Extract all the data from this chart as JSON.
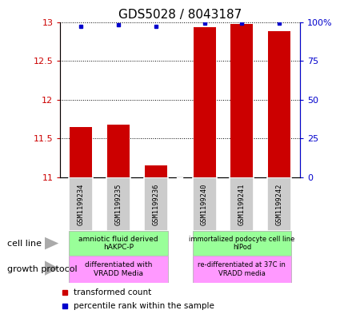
{
  "title": "GDS5028 / 8043187",
  "samples": [
    "GSM1199234",
    "GSM1199235",
    "GSM1199236",
    "GSM1199240",
    "GSM1199241",
    "GSM1199242"
  ],
  "bar_values": [
    11.65,
    11.68,
    11.15,
    12.93,
    12.97,
    12.88
  ],
  "percentile_values": [
    97,
    98,
    97,
    99,
    99,
    99
  ],
  "bar_color": "#cc0000",
  "dot_color": "#0000cc",
  "ylim_left": [
    11,
    13
  ],
  "ylim_right": [
    0,
    100
  ],
  "yticks_left": [
    11,
    11.5,
    12,
    12.5,
    13
  ],
  "yticks_right": [
    0,
    25,
    50,
    75,
    100
  ],
  "yticklabels_right": [
    "0",
    "25",
    "50",
    "75",
    "100%"
  ],
  "cell_line_labels": [
    "amniotic fluid derived\nhAKPC-P",
    "immortalized podocyte cell line\nhIPod"
  ],
  "growth_protocol_labels": [
    "differentiated with\nVRADD Media",
    "re-differentiated at 37C in\nVRADD media"
  ],
  "cell_line_color": "#99ff99",
  "growth_protocol_color": "#ff99ff",
  "sample_bg_color": "#cccccc",
  "legend_items": [
    "transformed count",
    "percentile rank within the sample"
  ],
  "title_fontsize": 11,
  "tick_fontsize": 8,
  "label_fontsize": 8
}
